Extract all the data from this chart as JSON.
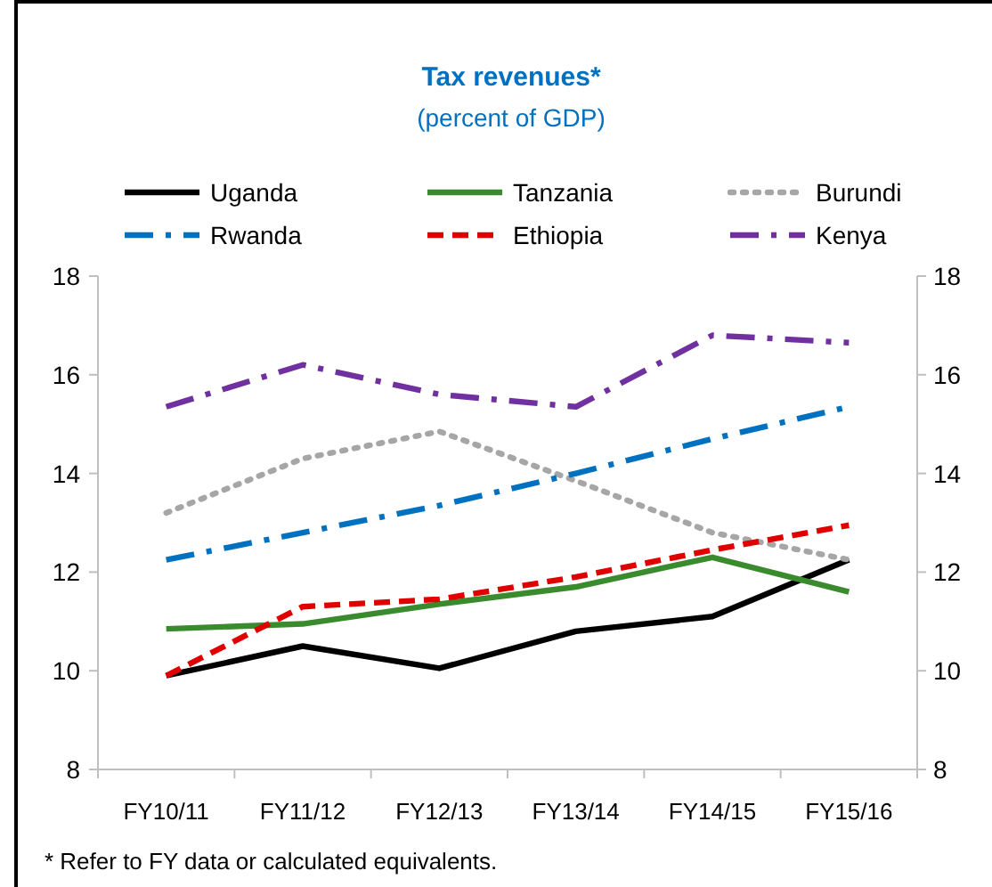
{
  "chart_data": {
    "type": "line",
    "title": "Tax revenues*",
    "subtitle": "(percent of GDP)",
    "categories": [
      "FY10/11",
      "FY11/12",
      "FY12/13",
      "FY13/14",
      "FY14/15",
      "FY15/16"
    ],
    "series": [
      {
        "name": "Uganda",
        "color": "#000000",
        "line_style": "solid",
        "values": [
          9.9,
          10.5,
          10.05,
          10.8,
          11.1,
          12.25
        ]
      },
      {
        "name": "Tanzania",
        "color": "#3a8a2e",
        "line_style": "solid",
        "values": [
          10.85,
          10.95,
          11.35,
          11.7,
          12.3,
          11.6
        ]
      },
      {
        "name": "Burundi",
        "color": "#a6a6a6",
        "line_style": "dotted",
        "values": [
          13.2,
          14.3,
          14.85,
          13.85,
          12.8,
          12.25
        ]
      },
      {
        "name": "Rwanda",
        "color": "#0070c0",
        "line_style": "dashdot",
        "values": [
          12.25,
          12.8,
          13.35,
          14.0,
          14.7,
          15.35
        ]
      },
      {
        "name": "Ethiopia",
        "color": "#e00000",
        "line_style": "dashed",
        "values": [
          9.9,
          11.3,
          11.45,
          11.9,
          12.45,
          12.95
        ]
      },
      {
        "name": "Kenya",
        "color": "#7030a0",
        "line_style": "dashdot",
        "values": [
          15.35,
          16.2,
          15.6,
          15.35,
          16.8,
          16.65
        ]
      }
    ],
    "ylim": [
      8,
      18
    ],
    "yticks": [
      8,
      10,
      12,
      14,
      16,
      18
    ],
    "y2lim": [
      8,
      18
    ],
    "y2ticks": [
      8,
      10,
      12,
      14,
      16,
      18
    ],
    "legend": "top",
    "annotations": [
      "* Refer to FY data or calculated equivalents."
    ]
  }
}
